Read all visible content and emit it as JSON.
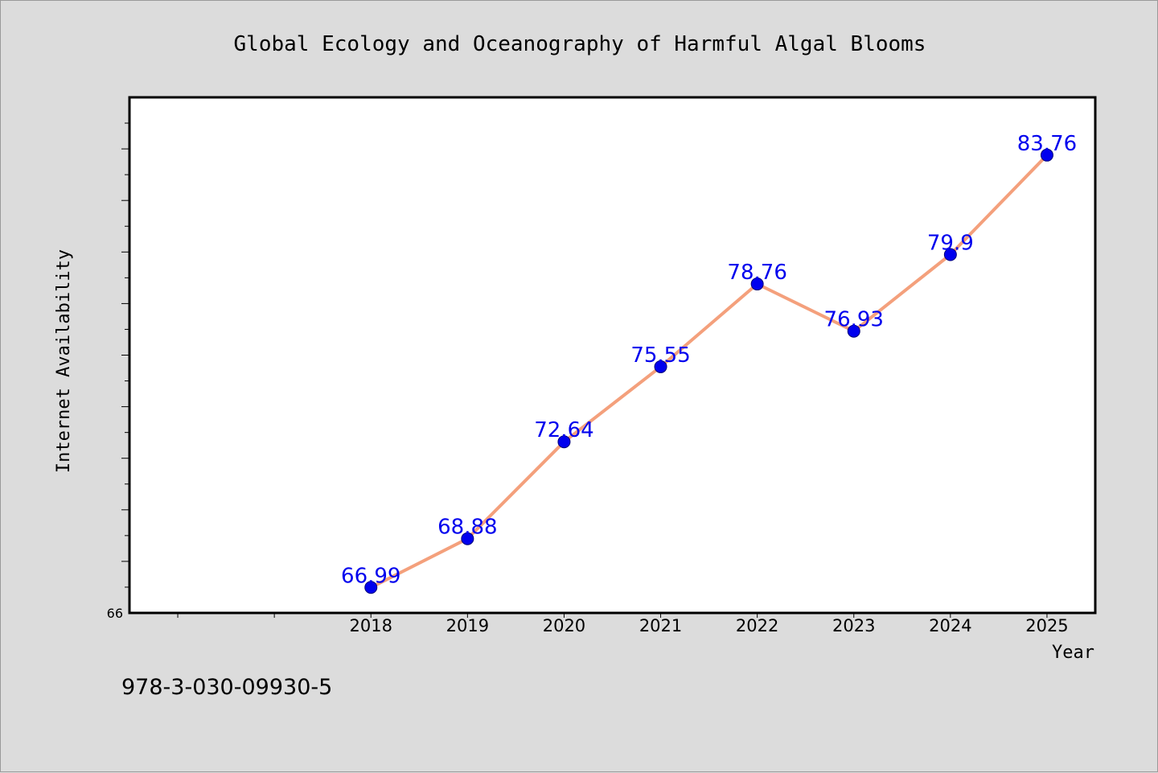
{
  "chart_data": {
    "type": "line",
    "title": "Global Ecology and Oceanography of Harmful Algal Blooms",
    "xlabel": "Year",
    "ylabel": "Internet Availability",
    "x": [
      "2018",
      "2019",
      "2020",
      "2021",
      "2022",
      "2023",
      "2024",
      "2025"
    ],
    "series": [
      {
        "values": [
          66.99,
          68.88,
          72.64,
          75.55,
          78.76,
          76.93,
          79.9,
          83.76
        ],
        "labels": [
          "66.99",
          "68.88",
          "72.64",
          "75.55",
          "78.76",
          "76.93",
          "79.9",
          "83.76"
        ]
      }
    ],
    "ylim": [
      66,
      86
    ],
    "xlim": [
      2015.5,
      2025.5
    ],
    "y_tick_labels": [
      "66"
    ],
    "grid": false,
    "legend": "none",
    "colors": {
      "line": "#f4a07c",
      "marker": "#0000ee",
      "data_label": "#0000ee",
      "plot_background": "#ffffff",
      "page_background": "#dcdcdc"
    }
  },
  "footnote": "978-3-030-09930-5"
}
